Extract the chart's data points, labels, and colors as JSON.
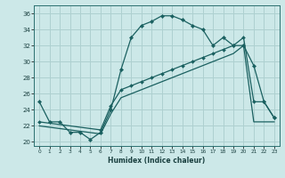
{
  "xlabel": "Humidex (Indice chaleur)",
  "background_color": "#cce8e8",
  "grid_color": "#aed0d0",
  "line_color": "#1a6060",
  "xlim": [
    -0.5,
    23.5
  ],
  "ylim": [
    19.5,
    37.0
  ],
  "xticks": [
    0,
    1,
    2,
    3,
    4,
    5,
    6,
    7,
    8,
    9,
    10,
    11,
    12,
    13,
    14,
    15,
    16,
    17,
    18,
    19,
    20,
    21,
    22,
    23
  ],
  "yticks": [
    20,
    22,
    24,
    26,
    28,
    30,
    32,
    34,
    36
  ],
  "line1_x": [
    0,
    1,
    2,
    3,
    4,
    5,
    6,
    7,
    8,
    9,
    10,
    11,
    12,
    13,
    14,
    15,
    16,
    17,
    18,
    19,
    20,
    21,
    22,
    23
  ],
  "line1_y": [
    25,
    22.5,
    22.5,
    21.2,
    21.2,
    20.3,
    21.2,
    24.0,
    29.0,
    33.0,
    34.5,
    35.0,
    35.7,
    35.7,
    35.2,
    34.5,
    34.0,
    32.0,
    33.0,
    32.0,
    32.0,
    29.5,
    25.0,
    23.0
  ],
  "line2_x": [
    0,
    6,
    7,
    8,
    9,
    10,
    11,
    12,
    13,
    14,
    15,
    16,
    17,
    18,
    19,
    20,
    21,
    22,
    23
  ],
  "line2_y": [
    22.5,
    21.5,
    24.5,
    26.5,
    27.0,
    27.5,
    28.0,
    28.5,
    29.0,
    29.5,
    30.0,
    30.5,
    31.0,
    31.5,
    32.0,
    33.0,
    25.0,
    25.0,
    23.0
  ],
  "line3_x": [
    0,
    6,
    7,
    8,
    9,
    10,
    11,
    12,
    13,
    14,
    15,
    16,
    17,
    18,
    19,
    20,
    21,
    22,
    23
  ],
  "line3_y": [
    22.0,
    21.0,
    23.5,
    25.5,
    26.0,
    26.5,
    27.0,
    27.5,
    28.0,
    28.5,
    29.0,
    29.5,
    30.0,
    30.5,
    31.0,
    32.0,
    22.5,
    22.5,
    22.5
  ]
}
